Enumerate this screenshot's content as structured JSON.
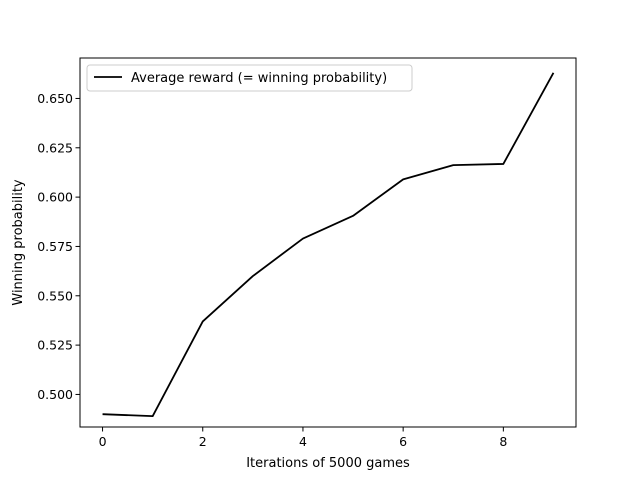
{
  "chart_data": {
    "type": "line",
    "title": "",
    "xlabel": "Iterations of 5000 games",
    "ylabel": "Winning probability",
    "xlim": [
      -0.45,
      9.45
    ],
    "ylim": [
      0.4835,
      0.6705
    ],
    "x_ticks": [
      0,
      2,
      4,
      6,
      8
    ],
    "y_ticks": [
      0.5,
      0.525,
      0.55,
      0.575,
      0.6,
      0.625,
      0.65
    ],
    "x_tick_labels": [
      "0",
      "2",
      "4",
      "6",
      "8"
    ],
    "y_tick_labels": [
      "0.500",
      "0.525",
      "0.550",
      "0.575",
      "0.600",
      "0.625",
      "0.650"
    ],
    "grid": false,
    "legend_position": "top-left",
    "series": [
      {
        "name": "Average reward (= winning probability)",
        "color": "#000000",
        "x": [
          0,
          1,
          2,
          3,
          4,
          5,
          6,
          7,
          8,
          9
        ],
        "values": [
          0.49,
          0.489,
          0.537,
          0.56,
          0.579,
          0.5905,
          0.609,
          0.6162,
          0.6168,
          0.663
        ]
      }
    ]
  }
}
